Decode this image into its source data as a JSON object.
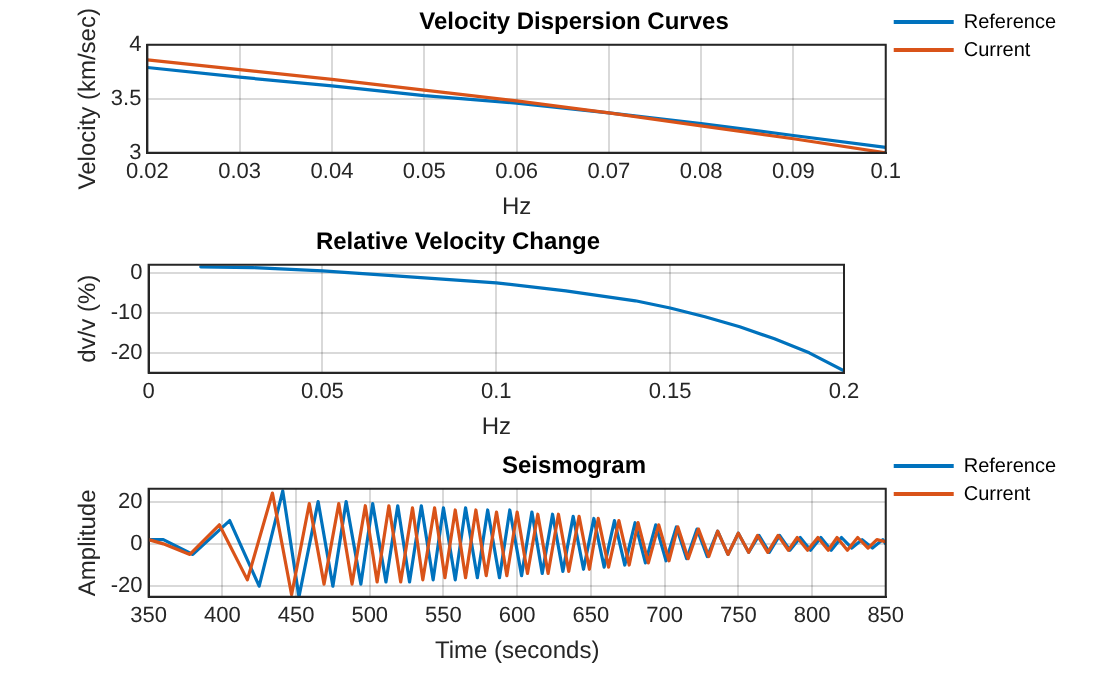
{
  "chart_data": [
    {
      "type": "line",
      "title": "Velocity Dispersion Curves",
      "xlabel": "Hz",
      "ylabel": "Velocity (km/sec)",
      "x": [
        0.02,
        0.03,
        0.04,
        0.05,
        0.06,
        0.07,
        0.08,
        0.09,
        0.1
      ],
      "xlim": [
        0.02,
        0.1
      ],
      "xticks": [
        0.02,
        0.03,
        0.04,
        0.05,
        0.06,
        0.07,
        0.08,
        0.09,
        0.1
      ],
      "ylim": [
        3,
        4
      ],
      "yticks": [
        3,
        3.5,
        4
      ],
      "grid": true,
      "legend": "right",
      "marker": "none",
      "line_style": "solid",
      "series": [
        {
          "name": "Reference",
          "color": "#0072bd",
          "values": [
            3.79,
            3.7,
            3.62,
            3.53,
            3.46,
            3.37,
            3.27,
            3.16,
            3.05
          ]
        },
        {
          "name": "Current",
          "color": "#d95319",
          "values": [
            3.86,
            3.77,
            3.68,
            3.58,
            3.48,
            3.37,
            3.25,
            3.13,
            3.0
          ]
        }
      ]
    },
    {
      "type": "line",
      "title": "Relative Velocity Change",
      "xlabel": "Hz",
      "ylabel": "dv/v (%)",
      "x": [
        0.015,
        0.03,
        0.05,
        0.07,
        0.1,
        0.12,
        0.14,
        0.15,
        0.16,
        0.17,
        0.18,
        0.19,
        0.2
      ],
      "xlim": [
        0,
        0.2
      ],
      "xticks": [
        0,
        0.05,
        0.1,
        0.15,
        0.2
      ],
      "ylim": [
        -25,
        2
      ],
      "yticks": [
        -20,
        -10,
        0
      ],
      "grid": true,
      "marker": "none",
      "line_style": "solid",
      "series": [
        {
          "color": "#0072bd",
          "values": [
            1.5,
            1.3,
            0.5,
            -0.7,
            -2.5,
            -4.5,
            -7,
            -8.8,
            -11,
            -13.5,
            -16.5,
            -20,
            -24.5
          ]
        }
      ]
    },
    {
      "type": "line",
      "title": "Seismogram",
      "xlabel": "Time (seconds)",
      "ylabel": "Amplitude",
      "xlim": [
        350,
        850
      ],
      "xticks": [
        350,
        400,
        450,
        500,
        550,
        600,
        650,
        700,
        750,
        800,
        850
      ],
      "ylim": [
        -25,
        26
      ],
      "yticks": [
        -20,
        0,
        20
      ],
      "grid": true,
      "legend": "right",
      "marker": "none",
      "line_style": "solid",
      "series": [
        {
          "name": "Reference",
          "color": "#0072bd",
          "x": [
            350,
            360,
            380,
            405,
            425,
            441,
            452,
            465,
            475,
            484,
            494,
            502,
            511,
            519,
            527,
            535,
            543,
            550,
            558,
            565,
            573,
            580,
            588,
            595,
            603,
            610,
            617,
            624,
            631,
            638,
            645,
            652,
            659,
            666,
            673,
            680,
            687,
            694,
            701,
            708,
            715,
            722,
            729,
            736,
            743,
            750,
            757,
            764,
            771,
            778,
            785,
            792,
            799,
            806,
            813,
            820,
            827,
            834,
            841,
            848,
            850
          ],
          "values": [
            2,
            2,
            -5,
            11,
            -20,
            25,
            -25,
            20,
            -20,
            20,
            -19,
            19,
            -18,
            18,
            -18,
            18,
            -17,
            17,
            -17,
            17,
            -16,
            16,
            -16,
            16,
            -15,
            15,
            -14,
            14,
            -13,
            13,
            -12,
            12,
            -11,
            11,
            -10,
            10,
            -9,
            9,
            -8,
            8,
            -7,
            7,
            -6,
            6,
            -5,
            5,
            -4,
            4,
            -4,
            4,
            -3,
            3,
            -3,
            3,
            -3,
            3,
            -2,
            2,
            -2,
            2,
            0
          ]
        },
        {
          "name": "Current",
          "color": "#d95319",
          "x": [
            350,
            360,
            378,
            398,
            417,
            434,
            447,
            459,
            469,
            479,
            488,
            497,
            505,
            513,
            521,
            529,
            536,
            544,
            551,
            558,
            565,
            572,
            579,
            586,
            593,
            600,
            607,
            614,
            621,
            628,
            635,
            642,
            649,
            655,
            662,
            669,
            676,
            682,
            689,
            696,
            703,
            709,
            716,
            723,
            730,
            736,
            743,
            750,
            757,
            763,
            770,
            777,
            784,
            790,
            797,
            804,
            811,
            817,
            824,
            831,
            838,
            844,
            850
          ],
          "values": [
            2,
            0,
            -5,
            9,
            -17,
            24,
            -24,
            19,
            -19,
            19,
            -19,
            18,
            -18,
            18,
            -18,
            17,
            -17,
            17,
            -16,
            16,
            -16,
            16,
            -15,
            15,
            -15,
            15,
            -14,
            14,
            -14,
            14,
            -13,
            13,
            -12,
            12,
            -11,
            11,
            -10,
            10,
            -9,
            9,
            -8,
            8,
            -7,
            7,
            -6,
            6,
            -5,
            5,
            -4,
            4,
            -4,
            4,
            -3,
            3,
            -3,
            3,
            -3,
            3,
            -3,
            3,
            -2,
            2,
            1
          ]
        }
      ]
    }
  ]
}
